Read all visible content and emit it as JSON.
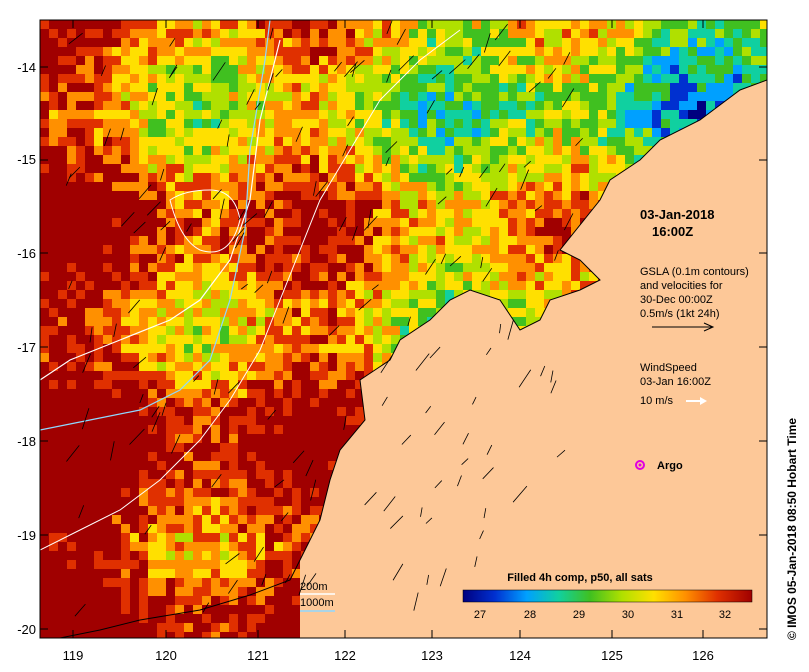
{
  "map": {
    "x_ticks": [
      "119",
      "120",
      "121",
      "122",
      "123",
      "124",
      "125",
      "126"
    ],
    "y_ticks": [
      "-14",
      "-15",
      "-16",
      "-17",
      "-18",
      "-19",
      "-20"
    ],
    "land_color": "#fdc898",
    "frame_color": "#000000"
  },
  "annotations": {
    "timestamp_line1": "03-Jan-2018",
    "timestamp_line2": "16:00Z",
    "gsla_line1": "GSLA (0.1m contours)",
    "gsla_line2": "and velocities for",
    "gsla_line3": "30-Dec 00:00Z",
    "gsla_line4": "0.5m/s (1kt 24h)",
    "wind_line1": "WindSpeed",
    "wind_line2": "03-Jan 16:00Z",
    "wind_line3": "10 m/s",
    "argo_label": "Argo",
    "depth_200": "200m",
    "depth_1000": "1000m",
    "side_credit": "© IMOS 05-Jan-2018 08:50 Hobart Time"
  },
  "colorbar": {
    "title": "Filled 4h comp, p50, all sats",
    "labels": [
      "27",
      "28",
      "29",
      "30",
      "31",
      "32"
    ],
    "stops": [
      "#00007f",
      "#0030d0",
      "#00a0ff",
      "#10d0a0",
      "#40c020",
      "#b0e000",
      "#ffe000",
      "#ff9000",
      "#e03000",
      "#a00000"
    ]
  }
}
